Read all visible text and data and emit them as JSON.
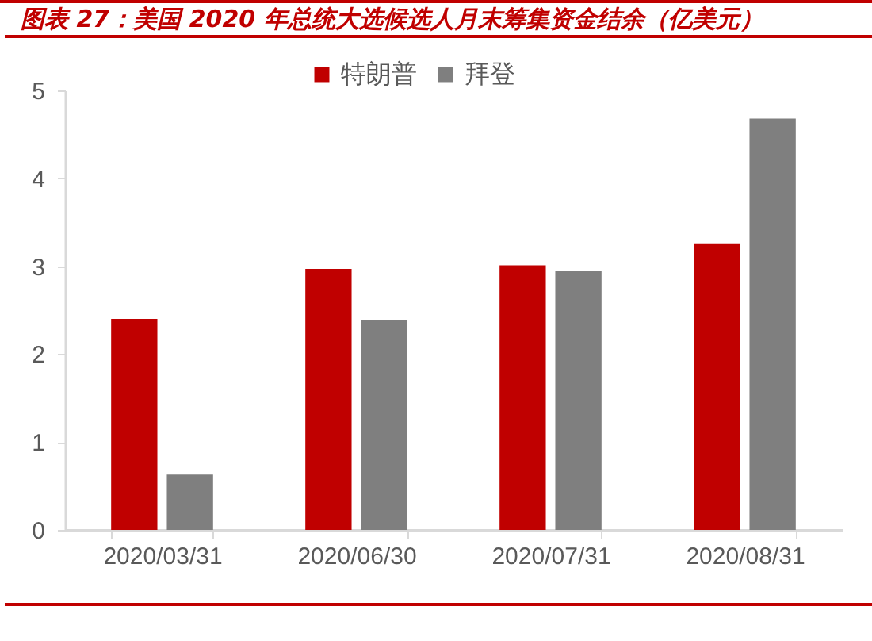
{
  "chart_data": {
    "type": "bar",
    "title": "图表 27：美国 2020 年总统大选候选人月末筹集资金结余（亿美元）",
    "categories": [
      "2020/03/31",
      "2020/06/30",
      "2020/07/31",
      "2020/08/31"
    ],
    "series": [
      {
        "name": "特朗普",
        "color": "#c00000",
        "values": [
          2.4,
          2.97,
          3.01,
          3.26
        ]
      },
      {
        "name": "拜登",
        "color": "#7f7f7f",
        "values": [
          0.63,
          2.39,
          2.95,
          4.68
        ]
      }
    ],
    "ylim": [
      0,
      5
    ],
    "yticks": [
      0,
      1,
      2,
      3,
      4,
      5
    ],
    "grid": false,
    "legend": "top"
  }
}
